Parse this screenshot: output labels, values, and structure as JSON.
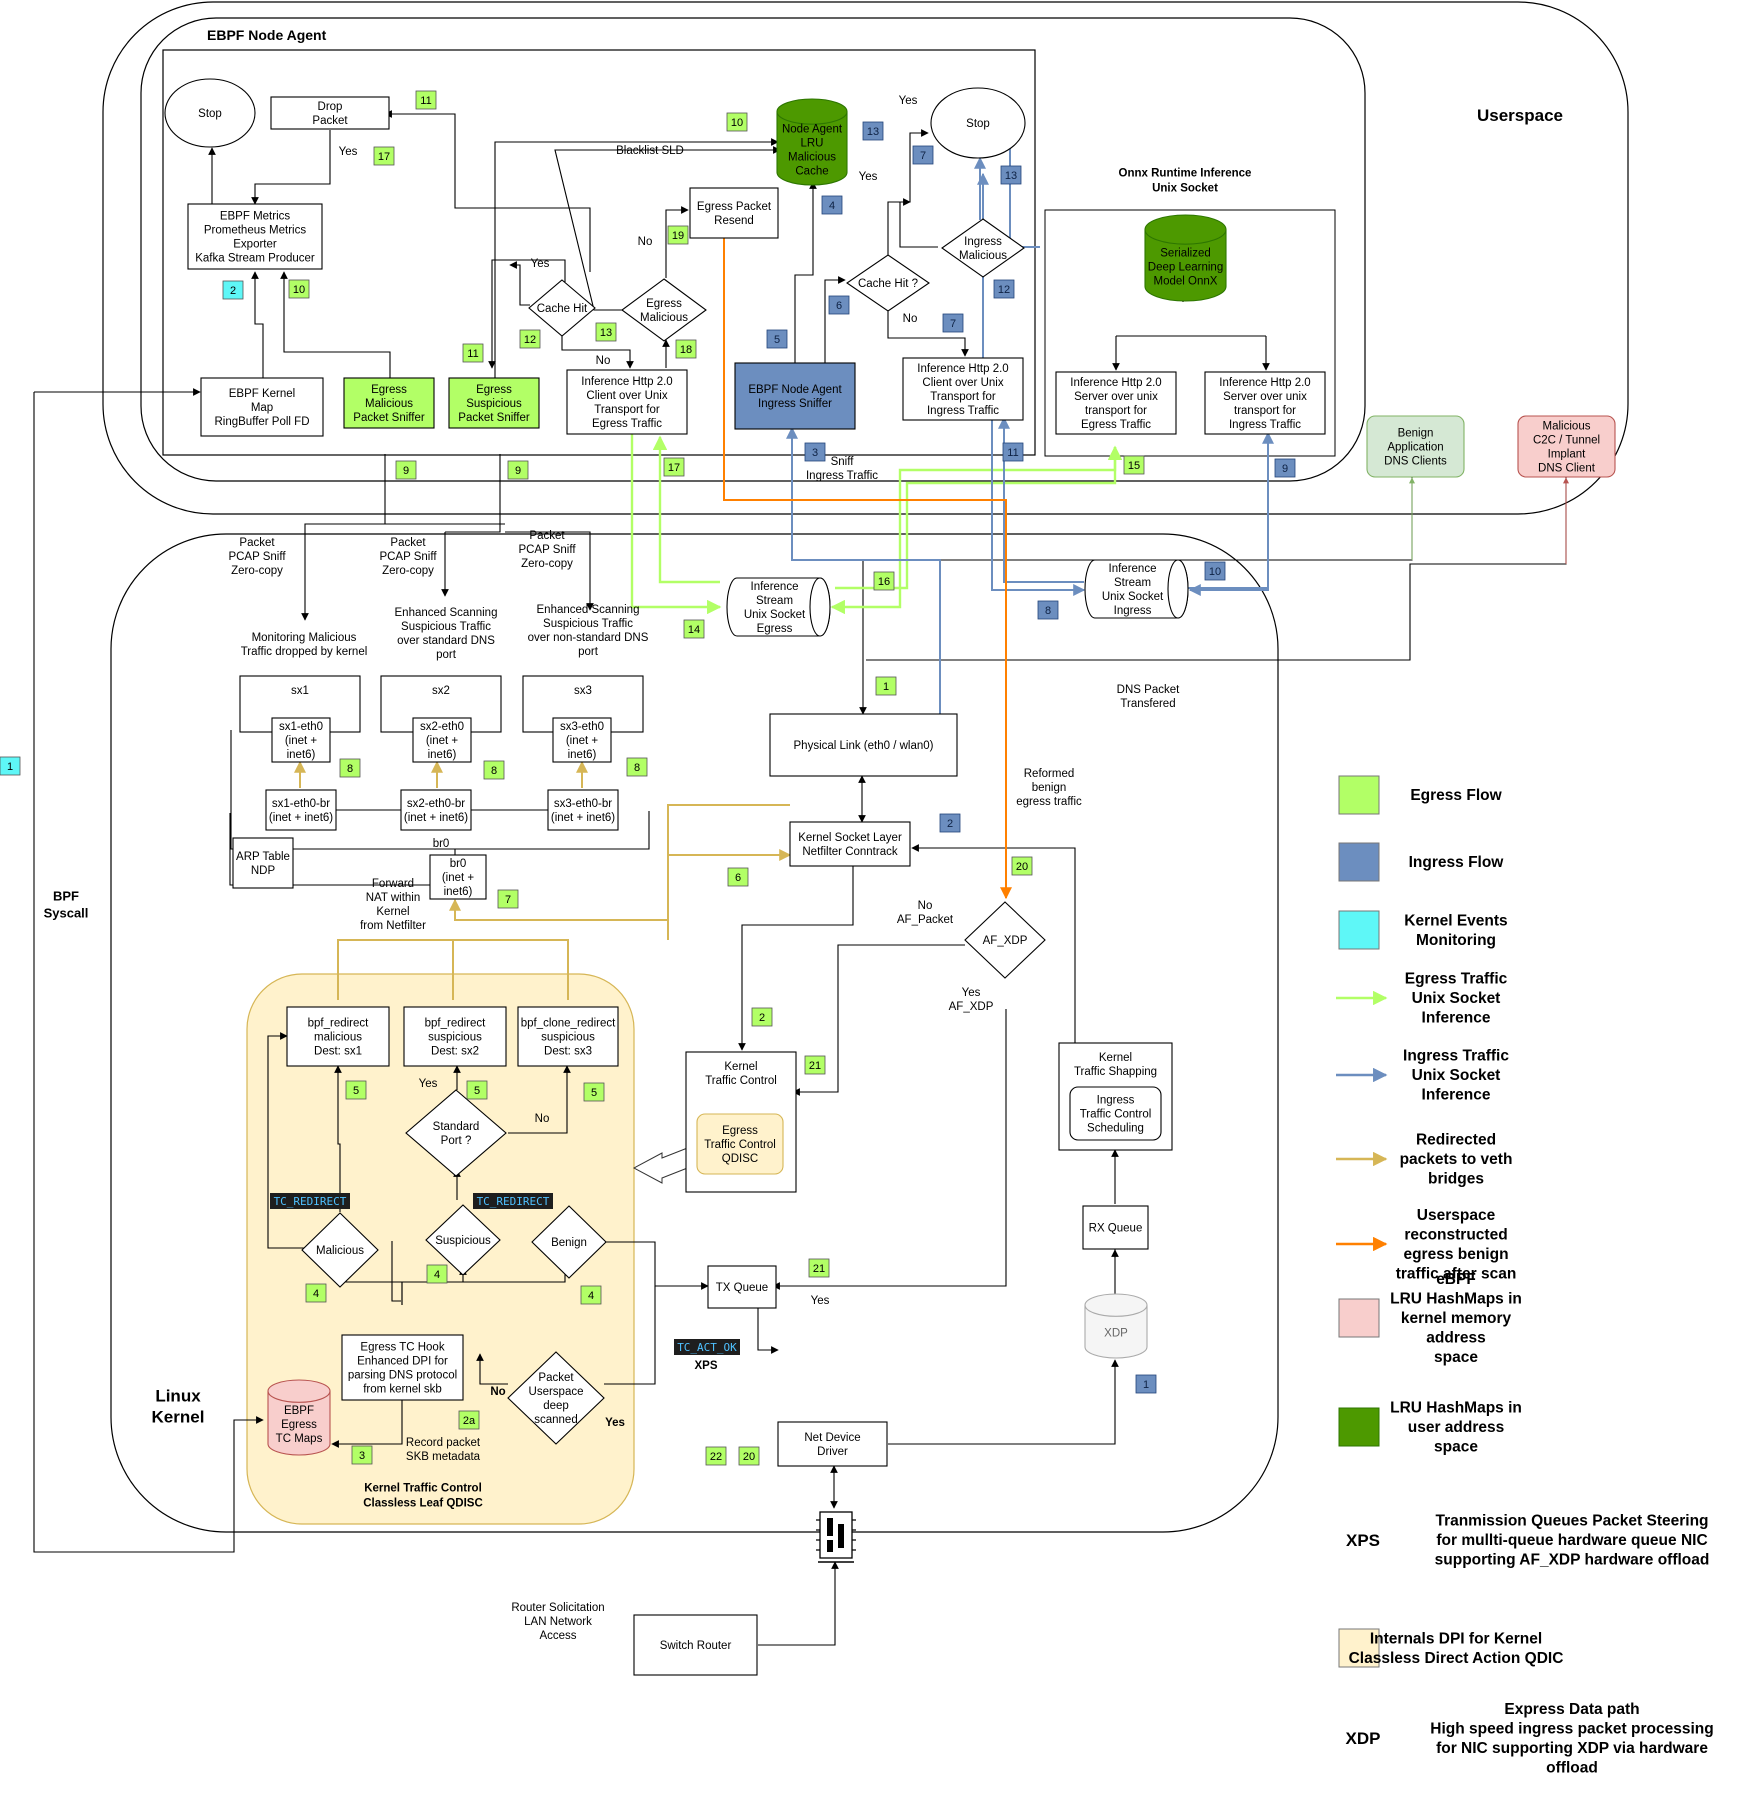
{
  "regions": {
    "userspace_title": "Userspace",
    "agent_title": "EBPF Node Agent",
    "onnx_title": [
      "Onnx Runtime Inference",
      "Unix Socket"
    ],
    "kernel_title": [
      "Linux",
      "Kernel"
    ],
    "qdisc_title": [
      "Kernel Traffic Control",
      "Classless Leaf QDISC"
    ],
    "bpf_syscall": [
      "BPF",
      "Syscall"
    ]
  },
  "nodes": {
    "stop1": [
      "Stop"
    ],
    "drop_packet": [
      "Drop",
      "Packet"
    ],
    "metrics": [
      "EBPF Metrics",
      "Prometheus Metrics",
      "Exporter",
      "Kafka Stream Producer"
    ],
    "ringbuffer": [
      "EBPF Kernel",
      "Map",
      "RingBuffer Poll FD"
    ],
    "egress_mal_sniffer": [
      "Egress",
      "Malicious",
      "Packet Sniffer"
    ],
    "egress_susp_sniffer": [
      "Egress",
      "Suspicious",
      "Packet Sniffer"
    ],
    "lru_cache": [
      "Node Agent",
      "LRU",
      "Malicious",
      "Cache"
    ],
    "cache_hit_l": [
      "Cache Hit"
    ],
    "egress_malicious_d": [
      "Egress",
      "Malicious"
    ],
    "egress_resend": [
      "Egress Packet",
      "Resend"
    ],
    "inf_client_egress": [
      "Inference Http 2.0",
      "Client over Unix",
      "Transport for",
      "Egress Traffic"
    ],
    "ingress_sniffer": [
      "EBPF Node Agent",
      "Ingress Sniffer"
    ],
    "cache_hit_r": [
      "Cache Hit ?"
    ],
    "stop2": [
      "Stop"
    ],
    "ingress_malicious_d": [
      "Ingress",
      "Malicious"
    ],
    "inf_client_ingress": [
      "Inference Http 2.0",
      "Client over Unix",
      "Transport for",
      "Ingress Traffic"
    ],
    "onnx_model": [
      "Serialized",
      "Deep Learning",
      "Model OnnX"
    ],
    "inf_server_egress": [
      "Inference Http 2.0",
      "Server over unix",
      "transport for",
      "Egress Traffic"
    ],
    "inf_server_ingress": [
      "Inference Http 2.0",
      "Server over unix",
      "transport for",
      "Ingress Traffic"
    ],
    "benign_clients": [
      "Benign",
      "Application",
      "DNS Clients"
    ],
    "malicious_clients": [
      "Malicious",
      "C2C / Tunnel",
      "Implant",
      "DNS Client"
    ],
    "stream_egress": [
      "Inference",
      "Stream",
      "Unix Socket",
      "Egress"
    ],
    "stream_ingress": [
      "Inference",
      "Stream",
      "Unix Socket",
      "Ingress"
    ],
    "sx1": [
      "sx1"
    ],
    "sx2": [
      "sx2"
    ],
    "sx3": [
      "sx3"
    ],
    "sx1_eth0": [
      "sx1-eth0",
      "(inet +",
      "inet6)"
    ],
    "sx2_eth0": [
      "sx2-eth0",
      "(inet +",
      "inet6)"
    ],
    "sx3_eth0": [
      "sx3-eth0",
      "(inet +",
      "inet6)"
    ],
    "sx1_br": [
      "sx1-eth0-br",
      "(inet + inet6)"
    ],
    "sx2_br": [
      "sx2-eth0-br",
      "(inet + inet6)"
    ],
    "sx3_br": [
      "sx3-eth0-br",
      "(inet + inet6)"
    ],
    "arp": [
      "ARP Table",
      "NDP"
    ],
    "br0": [
      "br0",
      "(inet +",
      "inet6)"
    ],
    "physical_link": [
      "Physical Link (eth0 / wlan0)"
    ],
    "socket_layer": [
      "Kernel Socket Layer",
      "Netfilter Conntrack"
    ],
    "af_xdp": [
      "AF_XDP"
    ],
    "kernel_tc": [
      "Kernel",
      "Traffic Control"
    ],
    "egress_qdisc": [
      "Egress",
      "Traffic Control",
      "QDISC"
    ],
    "shaping": [
      "Kernel",
      "Traffic Shapping"
    ],
    "ingress_sched": [
      "Ingress",
      "Traffic Control",
      "Scheduling"
    ],
    "rx_queue": [
      "RX Queue"
    ],
    "xdp": [
      "XDP"
    ],
    "tx_queue": [
      "TX Queue"
    ],
    "net_driver": [
      "Net Device",
      "Driver"
    ],
    "switch": [
      "Switch Router"
    ],
    "bpf_redirect_mal": [
      "bpf_redirect",
      "malicious",
      "Dest: sx1"
    ],
    "bpf_redirect_susp": [
      "bpf_redirect",
      "suspicious",
      "Dest: sx2"
    ],
    "bpf_clone": [
      "bpf_clone_redirect",
      "suspicious",
      "Dest: sx3"
    ],
    "standard_port": [
      "Standard",
      "Port ?"
    ],
    "malicious_d": [
      "Malicious"
    ],
    "suspicious_d": [
      "Suspicious"
    ],
    "benign_d": [
      "Benign"
    ],
    "tc_hook": [
      "Egress TC Hook",
      "Enhanced DPI for",
      "parsing DNS protocol",
      "from kernel skb"
    ],
    "deep_scanned": [
      "Packet",
      "Userspace",
      "deep",
      "scanned"
    ],
    "tc_maps": [
      "EBPF",
      "Egress",
      "TC Maps"
    ]
  },
  "labels": {
    "yes_drop": [
      "Yes"
    ],
    "blacklist": [
      "Blacklist SLD"
    ],
    "yes_cache_l": [
      "Yes"
    ],
    "no_cache_l": [
      "No"
    ],
    "no_resend": [
      "No"
    ],
    "yes_stop2": [
      "Yes"
    ],
    "yes_cache_r": [
      "Yes"
    ],
    "no_cache_r": [
      "No"
    ],
    "sniff_ingress": [
      "Sniff",
      "Ingress Traffic"
    ],
    "pcap1": [
      "Packet",
      "PCAP Sniff",
      "Zero-copy"
    ],
    "pcap2": [
      "Packet",
      "PCAP Sniff",
      "Zero-copy"
    ],
    "pcap3": [
      "Packet",
      "PCAP Sniff",
      "Zero-copy"
    ],
    "mon_mal": [
      "Monitoring Malicious",
      "Traffic dropped by kernel"
    ],
    "enh_std": [
      "Enhanced Scanning",
      "Suspicious Traffic",
      "over standard DNS",
      "port"
    ],
    "enh_nonstd": [
      "Enhanced Scanning",
      "Suspicious Traffic",
      "over non-standard DNS",
      "port"
    ],
    "dns_transfered": [
      "DNS Packet",
      "Transfered"
    ],
    "reformed": [
      "Reformed",
      "benign",
      "egress traffic"
    ],
    "br0_label": [
      "br0"
    ],
    "forward_nat": [
      "Forward",
      "NAT within",
      "Kernel",
      "from Netfilter"
    ],
    "no_afpacket": [
      "No",
      "AF_Packet"
    ],
    "yes_afxdp": [
      "Yes",
      "AF_XDP"
    ],
    "yes_std": [
      "Yes"
    ],
    "no_std": [
      "No"
    ],
    "tc_redirect1": [
      "TC_REDIRECT"
    ],
    "tc_redirect2": [
      "TC_REDIRECT"
    ],
    "tc_act_ok": [
      "TC_ACT_OK"
    ],
    "xps_small": [
      "XPS"
    ],
    "yes_tx": [
      "Yes"
    ],
    "no_hook": [
      "No"
    ],
    "yes_hook": [
      "Yes"
    ],
    "record": [
      "Record packet",
      "SKB metadata"
    ],
    "router_sol": [
      "Router Solicitation",
      "LAN Network",
      "Access"
    ]
  },
  "badges": [
    {
      "t": "11",
      "c": "green"
    },
    {
      "t": "17",
      "c": "green"
    },
    {
      "t": "10",
      "c": "green"
    },
    {
      "t": "13",
      "c": "blue"
    },
    {
      "t": "4",
      "c": "blue"
    },
    {
      "t": "7",
      "c": "blue"
    },
    {
      "t": "13",
      "c": "blue"
    },
    {
      "t": "2",
      "c": "cyan"
    },
    {
      "t": "10",
      "c": "green"
    },
    {
      "t": "19",
      "c": "green"
    },
    {
      "t": "12",
      "c": "green"
    },
    {
      "t": "13",
      "c": "green"
    },
    {
      "t": "18",
      "c": "green"
    },
    {
      "t": "11",
      "c": "green"
    },
    {
      "t": "6",
      "c": "blue"
    },
    {
      "t": "5",
      "c": "blue"
    },
    {
      "t": "12",
      "c": "blue"
    },
    {
      "t": "7",
      "c": "blue"
    },
    {
      "t": "3",
      "c": "blue"
    },
    {
      "t": "11",
      "c": "blue"
    },
    {
      "t": "9",
      "c": "green"
    },
    {
      "t": "9",
      "c": "green"
    },
    {
      "t": "17",
      "c": "green"
    },
    {
      "t": "15",
      "c": "green"
    },
    {
      "t": "9",
      "c": "blue"
    },
    {
      "t": "16",
      "c": "green"
    },
    {
      "t": "14",
      "c": "green"
    },
    {
      "t": "10",
      "c": "blue"
    },
    {
      "t": "8",
      "c": "blue"
    },
    {
      "t": "1",
      "c": "cyan"
    },
    {
      "t": "1",
      "c": "green"
    },
    {
      "t": "8",
      "c": "green"
    },
    {
      "t": "8",
      "c": "green"
    },
    {
      "t": "8",
      "c": "green"
    },
    {
      "t": "2",
      "c": "blue"
    },
    {
      "t": "7",
      "c": "green"
    },
    {
      "t": "6",
      "c": "green"
    },
    {
      "t": "20",
      "c": "green"
    },
    {
      "t": "2",
      "c": "green"
    },
    {
      "t": "21",
      "c": "green"
    },
    {
      "t": "5",
      "c": "green"
    },
    {
      "t": "5",
      "c": "green"
    },
    {
      "t": "5",
      "c": "green"
    },
    {
      "t": "4",
      "c": "green"
    },
    {
      "t": "4",
      "c": "green"
    },
    {
      "t": "4",
      "c": "green"
    },
    {
      "t": "21",
      "c": "green"
    },
    {
      "t": "2a",
      "c": "green"
    },
    {
      "t": "3",
      "c": "green"
    },
    {
      "t": "22",
      "c": "green"
    },
    {
      "t": "20",
      "c": "green"
    },
    {
      "t": "1",
      "c": "blue"
    }
  ],
  "legend": [
    {
      "kind": "swatch",
      "color": "#b2ff66",
      "label": [
        "Egress Flow"
      ]
    },
    {
      "kind": "swatch",
      "color": "#6c8ebf",
      "label": [
        "Ingress Flow"
      ]
    },
    {
      "kind": "swatch",
      "color": "#5ef7f7",
      "label": [
        "Kernel Events",
        "Monitoring"
      ]
    },
    {
      "kind": "arrow",
      "color": "#b2ff66",
      "label": [
        "Egress Traffic",
        "Unix Socket",
        "Inference"
      ]
    },
    {
      "kind": "arrow",
      "color": "#6c8ebf",
      "label": [
        "Ingress Traffic",
        "Unix Socket",
        "Inference"
      ]
    },
    {
      "kind": "arrow",
      "color": "#d6b656",
      "label": [
        "Redirected",
        "packets to veth",
        "bridges"
      ]
    },
    {
      "kind": "arrow",
      "color": "#ff8000",
      "label": [
        "Userspace",
        "reconstructed",
        "egress benign",
        "traffic after scan"
      ]
    },
    {
      "kind": "swatch",
      "color": "#f8cecc",
      "label": [
        "eBPF",
        "LRU HashMaps in",
        "kernel memory",
        "address",
        "space"
      ]
    },
    {
      "kind": "swatch",
      "color": "#4d9900",
      "label": [
        "LRU HashMaps in",
        "user address",
        "space"
      ]
    },
    {
      "kind": "abbr",
      "abbr": "XPS",
      "label": [
        "Tranmission Queues Packet Steering",
        "for mullti-queue hardware queue NIC",
        "supporting AF_XDP hardware offload"
      ]
    },
    {
      "kind": "swatch",
      "color": "#fff2cc",
      "label": [
        "Internals DPI for Kernel",
        "Classless Direct Action QDIC"
      ]
    },
    {
      "kind": "abbr",
      "abbr": "XDP",
      "label": [
        "Express Data path",
        "High speed ingress packet processing",
        "for NIC supporting XDP via hardware",
        "offload"
      ]
    }
  ],
  "colors": {
    "egress_green": "#b2ff66",
    "ingress_blue": "#6c8ebf",
    "redirect_gold": "#d6b656",
    "reconstructed_orange": "#ff8000",
    "kernel_cyan": "#5ef7f7",
    "lru_green": "#4d9900",
    "kernel_map_pink": "#f8cecc",
    "qdisc_cream": "#fff2cc"
  }
}
